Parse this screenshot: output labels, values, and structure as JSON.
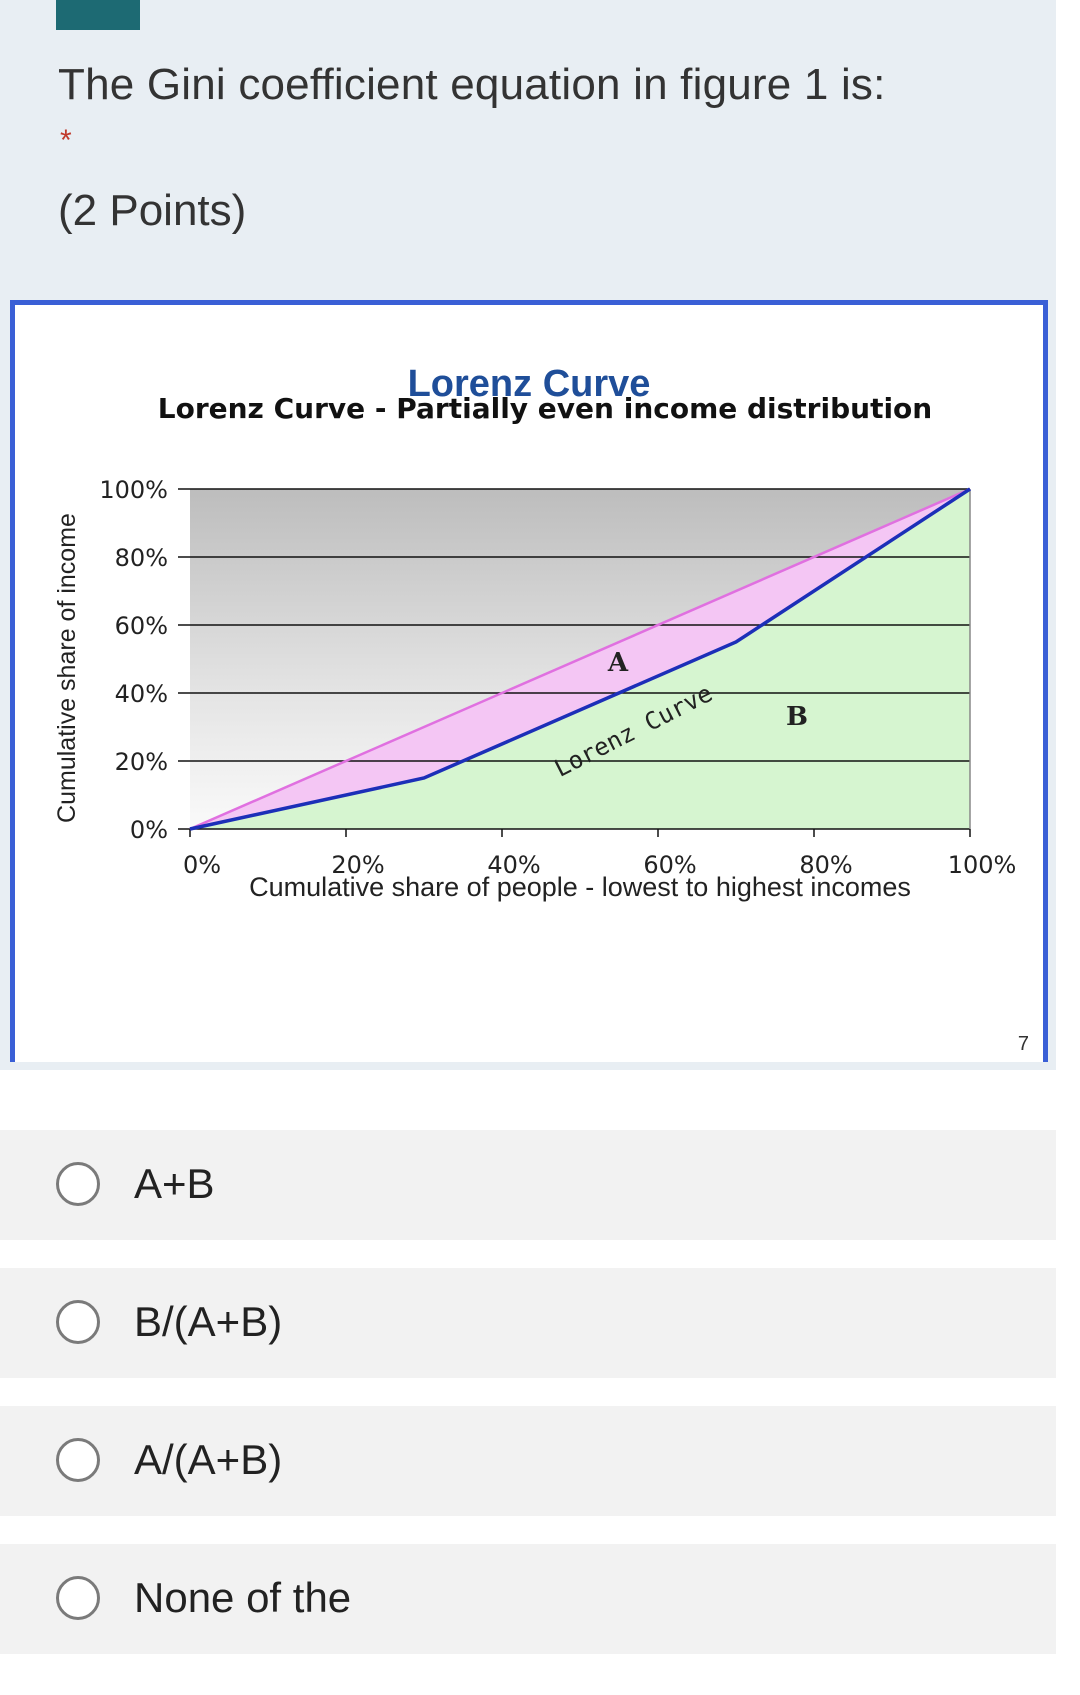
{
  "question": {
    "title": "The Gini coefficient equation  in figure 1  is:",
    "required_marker": "*",
    "points": "(2 Points)"
  },
  "figure": {
    "title": "Lorenz Curve",
    "slide_number": "7"
  },
  "chart_data": {
    "type": "line",
    "title": "Lorenz Curve - Partially even income distribution",
    "xlabel": "Cumulative share of people - lowest to highest incomes",
    "ylabel": "Cumulative share of income",
    "x_ticks": [
      "0%",
      "20%",
      "40%",
      "60%",
      "80%",
      "100%"
    ],
    "y_ticks": [
      "0%",
      "20%",
      "40%",
      "60%",
      "80%",
      "100%"
    ],
    "xlim": [
      0,
      100
    ],
    "ylim": [
      0,
      100
    ],
    "grid": true,
    "series": [
      {
        "name": "",
        "role": "line of equality",
        "color": "#e070e0",
        "x": [
          0,
          100
        ],
        "y": [
          0,
          100
        ]
      },
      {
        "name": "Lorenz Curve",
        "color": "#1c2fb8",
        "x": [
          0,
          30,
          70,
          100
        ],
        "y": [
          0,
          15,
          55,
          100
        ]
      }
    ],
    "regions": [
      {
        "label": "A",
        "color": "#f4c6f4"
      },
      {
        "label": "B",
        "color": "#d6f5d0"
      }
    ],
    "curve_label": "Lorenz Curve",
    "colors": {
      "upper_region": "#c8c8c8",
      "grid": "#000000"
    }
  },
  "options": [
    {
      "label": "A+B"
    },
    {
      "label": "B/(A+B)"
    },
    {
      "label": "A/(A+B)"
    },
    {
      "label": "None of the"
    }
  ]
}
